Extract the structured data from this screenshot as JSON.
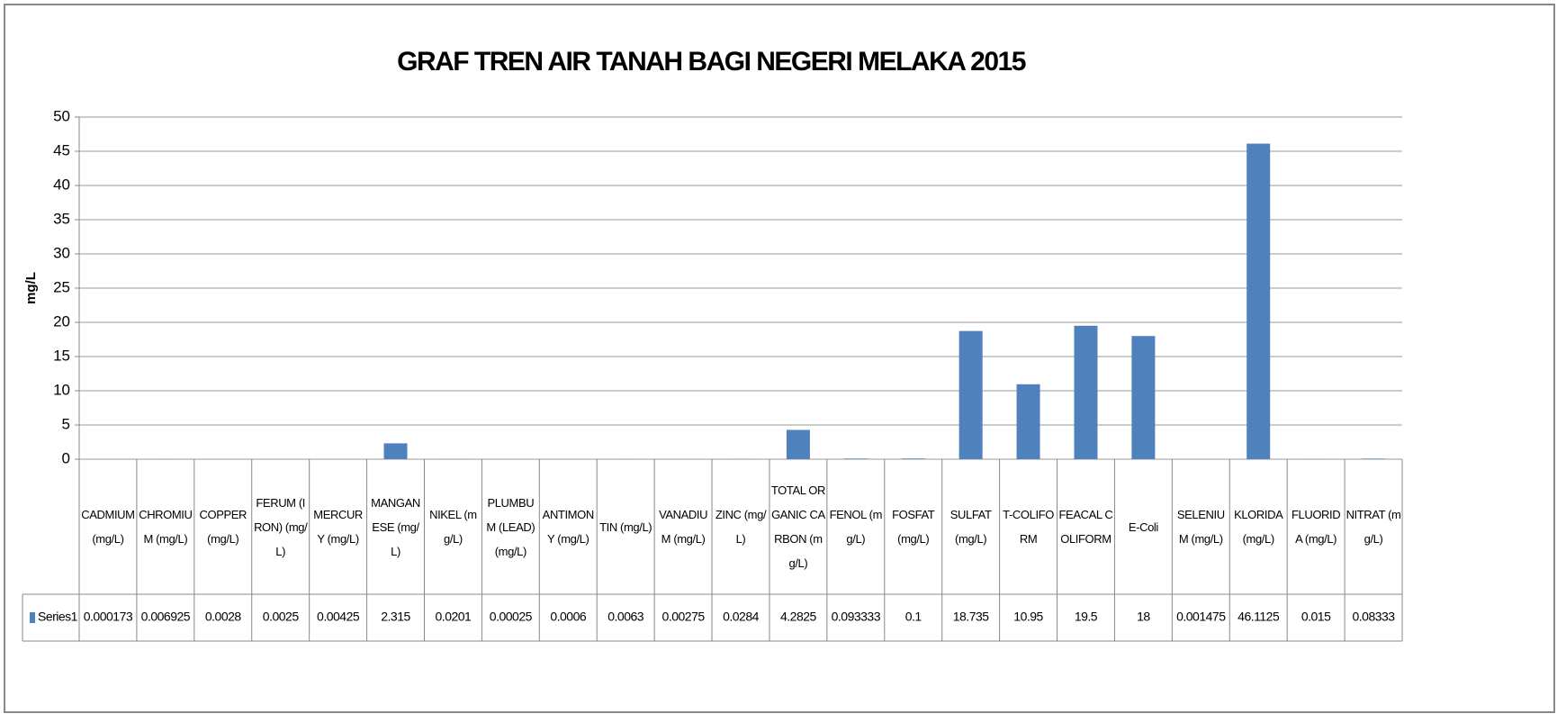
{
  "chart_data": {
    "type": "bar",
    "title": "GRAF TREN AIR  TANAH BAGI NEGERI MELAKA 2015",
    "y_label": "mg/L",
    "categories": [
      "CADMIUM (mg/L)",
      "CHROMIUM (mg/L)",
      "COPPER (mg/L)",
      "FERUM (IRON) (mg/L)",
      "MERCURY (mg/L)",
      "MANGANESE (mg/L)",
      "NIKEL (mg/L)",
      "PLUMBUM (LEAD) (mg/L)",
      "ANTIMONY (mg/L)",
      "TIN (mg/L)",
      "VANADIUM (mg/L)",
      "ZINC (mg/L)",
      "TOTAL ORGANIC CARBON (mg/L)",
      "FENOL (mg/L)",
      "FOSFAT (mg/L)",
      "SULFAT (mg/L)",
      "T-COLIFORM",
      "FEACAL COLIFORM",
      "E-Coli",
      "SELENIUM (mg/L)",
      "KLORIDA (mg/L)",
      "FLUORIDA (mg/L)",
      "NITRAT (mg/L)"
    ],
    "series": [
      {
        "name": "Series1",
        "color": "#4f81bd",
        "values": [
          0.000173,
          0.006925,
          0.0028,
          0.0025,
          0.00425,
          2.315,
          0.0201,
          0.00025,
          0.0006,
          0.0063,
          0.00275,
          0.0284,
          4.2825,
          0.093333,
          0.1,
          18.735,
          10.95,
          19.5,
          18,
          0.001475,
          46.1125,
          0.015,
          0.08333
        ]
      }
    ],
    "ylim": [
      0,
      50
    ],
    "yticks": [
      0,
      5,
      10,
      15,
      20,
      25,
      30,
      35,
      40,
      45,
      50
    ],
    "grid": true
  }
}
